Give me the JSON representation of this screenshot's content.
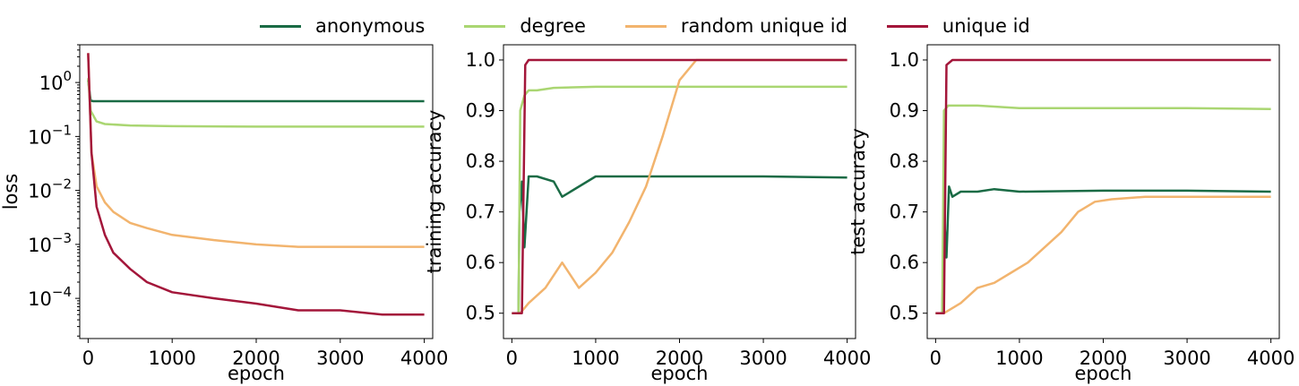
{
  "chart_data": [
    {
      "type": "line",
      "panel": "loss",
      "xlabel": "epoch",
      "ylabel": "loss",
      "yscale": "log",
      "xlim": [
        -100,
        4100
      ],
      "ylim": [
        1.8e-05,
        5
      ],
      "xticks": [
        0,
        1000,
        2000,
        3000,
        4000
      ],
      "xtick_labels": [
        "0",
        "1000",
        "2000",
        "3000",
        "4000"
      ],
      "yticks": [
        1,
        0.1,
        0.01,
        0.001,
        0.0001
      ],
      "ytick_labels": [
        {
          "base": "10",
          "exp": "0"
        },
        {
          "base": "10",
          "exp": "−1"
        },
        {
          "base": "10",
          "exp": "−2"
        },
        {
          "base": "10",
          "exp": "−3"
        },
        {
          "base": "10",
          "exp": "−4"
        }
      ],
      "series": [
        {
          "name": "anonymous",
          "x": [
            0,
            30,
            60,
            500,
            1000,
            2000,
            3000,
            4000
          ],
          "y": [
            1.1,
            0.46,
            0.45,
            0.45,
            0.45,
            0.45,
            0.45,
            0.45
          ]
        },
        {
          "name": "degree",
          "x": [
            0,
            30,
            100,
            200,
            500,
            1000,
            2000,
            3000,
            4000
          ],
          "y": [
            1.2,
            0.3,
            0.19,
            0.17,
            0.16,
            0.155,
            0.152,
            0.152,
            0.152
          ]
        },
        {
          "name": "random unique id",
          "x": [
            0,
            40,
            100,
            200,
            300,
            500,
            700,
            1000,
            1500,
            2000,
            2500,
            3000,
            3500,
            4000
          ],
          "y": [
            3.5,
            0.05,
            0.012,
            0.006,
            0.004,
            0.0025,
            0.002,
            0.0015,
            0.0012,
            0.001,
            0.0009,
            0.0009,
            0.0009,
            0.0009
          ]
        },
        {
          "name": "unique id",
          "x": [
            0,
            40,
            100,
            200,
            300,
            500,
            700,
            1000,
            1500,
            2000,
            2500,
            3000,
            3500,
            4000
          ],
          "y": [
            3.5,
            0.05,
            0.005,
            0.0015,
            0.0007,
            0.00035,
            0.0002,
            0.00013,
            0.0001,
            8e-05,
            6e-05,
            6e-05,
            5e-05,
            5e-05
          ]
        }
      ]
    },
    {
      "type": "line",
      "panel": "training accuracy",
      "xlabel": "epoch",
      "ylabel": "training accuracy",
      "xlim": [
        -100,
        4100
      ],
      "ylim": [
        0.45,
        1.03
      ],
      "xticks": [
        0,
        1000,
        2000,
        3000,
        4000
      ],
      "xtick_labels": [
        "0",
        "1000",
        "2000",
        "3000",
        "4000"
      ],
      "yticks": [
        0.5,
        0.6,
        0.7,
        0.8,
        0.9,
        1.0
      ],
      "ytick_labels": [
        "0.5",
        "0.6",
        "0.7",
        "0.8",
        "0.9",
        "1.0"
      ],
      "series": [
        {
          "name": "anonymous",
          "x": [
            0,
            80,
            90,
            120,
            150,
            200,
            300,
            500,
            600,
            1000,
            2000,
            3000,
            4000
          ],
          "y": [
            0.5,
            0.5,
            0.7,
            0.76,
            0.63,
            0.77,
            0.77,
            0.76,
            0.73,
            0.77,
            0.77,
            0.77,
            0.768
          ]
        },
        {
          "name": "degree",
          "x": [
            0,
            80,
            100,
            150,
            200,
            300,
            500,
            1000,
            2000,
            3000,
            4000
          ],
          "y": [
            0.5,
            0.5,
            0.9,
            0.93,
            0.94,
            0.94,
            0.945,
            0.947,
            0.947,
            0.947,
            0.947
          ]
        },
        {
          "name": "random unique id",
          "x": [
            0,
            100,
            200,
            400,
            600,
            800,
            1000,
            1200,
            1400,
            1600,
            1800,
            2000,
            2200,
            2300,
            3000,
            4000
          ],
          "y": [
            0.5,
            0.5,
            0.52,
            0.55,
            0.6,
            0.55,
            0.58,
            0.62,
            0.68,
            0.75,
            0.85,
            0.96,
            1.0,
            1.0,
            1.0,
            1.0
          ]
        },
        {
          "name": "unique id",
          "x": [
            0,
            120,
            160,
            200,
            1000,
            2000,
            3000,
            4000
          ],
          "y": [
            0.5,
            0.5,
            0.99,
            1.0,
            1.0,
            1.0,
            1.0,
            1.0
          ]
        }
      ]
    },
    {
      "type": "line",
      "panel": "test accuracy",
      "xlabel": "epoch",
      "ylabel": "test accuracy",
      "xlim": [
        -100,
        4100
      ],
      "ylim": [
        0.45,
        1.03
      ],
      "xticks": [
        0,
        1000,
        2000,
        3000,
        4000
      ],
      "xtick_labels": [
        "0",
        "1000",
        "2000",
        "3000",
        "4000"
      ],
      "yticks": [
        0.5,
        0.6,
        0.7,
        0.8,
        0.9,
        1.0
      ],
      "ytick_labels": [
        "0.5",
        "0.6",
        "0.7",
        "0.8",
        "0.9",
        "1.0"
      ],
      "series": [
        {
          "name": "anonymous",
          "x": [
            0,
            80,
            100,
            130,
            160,
            200,
            300,
            500,
            700,
            1000,
            2000,
            3000,
            4000
          ],
          "y": [
            0.5,
            0.5,
            0.7,
            0.61,
            0.75,
            0.73,
            0.74,
            0.74,
            0.745,
            0.74,
            0.742,
            0.742,
            0.74
          ]
        },
        {
          "name": "degree",
          "x": [
            0,
            80,
            100,
            150,
            300,
            500,
            1000,
            2000,
            3000,
            4000
          ],
          "y": [
            0.5,
            0.5,
            0.9,
            0.91,
            0.91,
            0.91,
            0.905,
            0.905,
            0.905,
            0.903
          ]
        },
        {
          "name": "random unique id",
          "x": [
            0,
            100,
            300,
            500,
            700,
            900,
            1100,
            1300,
            1500,
            1700,
            1900,
            2100,
            2500,
            3000,
            3500,
            4000
          ],
          "y": [
            0.5,
            0.5,
            0.52,
            0.55,
            0.56,
            0.58,
            0.6,
            0.63,
            0.66,
            0.7,
            0.72,
            0.725,
            0.73,
            0.73,
            0.73,
            0.73
          ]
        },
        {
          "name": "unique id",
          "x": [
            0,
            100,
            130,
            200,
            500,
            1000,
            2000,
            3000,
            4000
          ],
          "y": [
            0.5,
            0.5,
            0.99,
            1.0,
            1.0,
            1.0,
            1.0,
            1.0,
            1.0
          ]
        }
      ]
    }
  ],
  "legend": {
    "placement": "top-center",
    "items": [
      {
        "label": "anonymous",
        "color": "#1a6b45"
      },
      {
        "label": "degree",
        "color": "#aad672"
      },
      {
        "label": "random unique id",
        "color": "#f2b46e"
      },
      {
        "label": "unique id",
        "color": "#a3163a"
      }
    ]
  }
}
